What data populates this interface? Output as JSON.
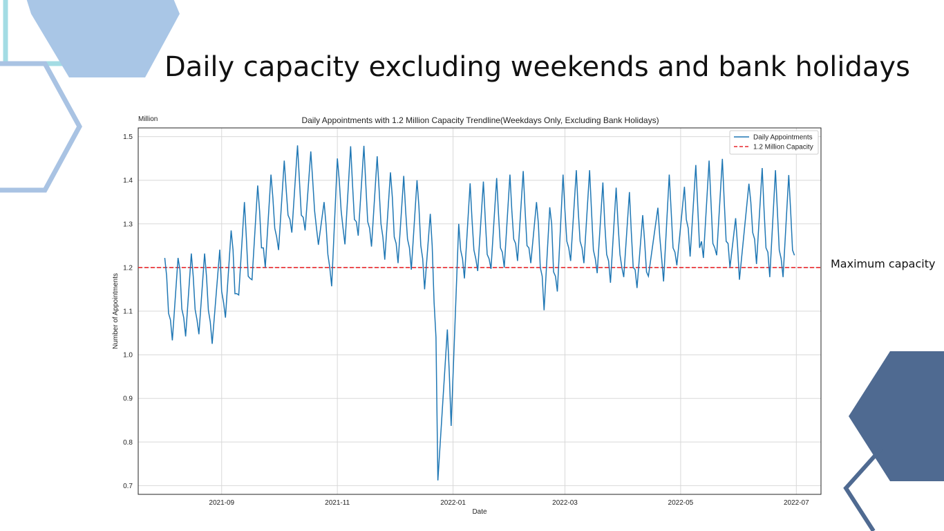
{
  "slide": {
    "title": "Daily capacity excluding weekends and bank holidays",
    "annotation": "Maximum capacity",
    "colors": {
      "hex_light_blue": "#a9c6e6",
      "hex_teal_outline": "#a3dce4",
      "hex_blue_outline": "#a9c3e3",
      "hex_dark_blue": "#4f6a91"
    }
  },
  "chart_data": {
    "type": "line",
    "title": "Daily Appointments with 1.2 Million Capacity Trendline(Weekdays Only, Excluding Bank Holidays)",
    "xlabel": "Date",
    "ylabel": "Number of Appointments",
    "unit_label": "Million",
    "xlim": [
      "2021-07-19",
      "2022-07-14"
    ],
    "ylim": [
      0.68,
      1.52
    ],
    "xticks": [
      "2021-09",
      "2021-11",
      "2022-01",
      "2022-03",
      "2022-05",
      "2022-07"
    ],
    "yticks": [
      "0.7",
      "0.8",
      "0.9",
      "1.0",
      "1.1",
      "1.2",
      "1.3",
      "1.4",
      "1.5"
    ],
    "grid": true,
    "legend_position": "top-right",
    "series": [
      {
        "name": "Daily Appointments",
        "color": "#1f77b4",
        "style": "solid",
        "points": [
          [
            "2021-08-02",
            1.222
          ],
          [
            "2021-08-03",
            1.18
          ],
          [
            "2021-08-04",
            1.095
          ],
          [
            "2021-08-05",
            1.08
          ],
          [
            "2021-08-06",
            1.033
          ],
          [
            "2021-08-09",
            1.222
          ],
          [
            "2021-08-10",
            1.195
          ],
          [
            "2021-08-11",
            1.105
          ],
          [
            "2021-08-12",
            1.085
          ],
          [
            "2021-08-13",
            1.042
          ],
          [
            "2021-08-16",
            1.232
          ],
          [
            "2021-08-17",
            1.18
          ],
          [
            "2021-08-18",
            1.104
          ],
          [
            "2021-08-19",
            1.08
          ],
          [
            "2021-08-20",
            1.047
          ],
          [
            "2021-08-23",
            1.232
          ],
          [
            "2021-08-24",
            1.18
          ],
          [
            "2021-08-25",
            1.102
          ],
          [
            "2021-08-26",
            1.075
          ],
          [
            "2021-08-27",
            1.025
          ],
          [
            "2021-08-31",
            1.241
          ],
          [
            "2021-09-01",
            1.145
          ],
          [
            "2021-09-02",
            1.12
          ],
          [
            "2021-09-03",
            1.085
          ],
          [
            "2021-09-06",
            1.285
          ],
          [
            "2021-09-07",
            1.24
          ],
          [
            "2021-09-08",
            1.14
          ],
          [
            "2021-09-09",
            1.14
          ],
          [
            "2021-09-10",
            1.137
          ],
          [
            "2021-09-13",
            1.35
          ],
          [
            "2021-09-14",
            1.27
          ],
          [
            "2021-09-15",
            1.18
          ],
          [
            "2021-09-16",
            1.175
          ],
          [
            "2021-09-17",
            1.172
          ],
          [
            "2021-09-20",
            1.388
          ],
          [
            "2021-09-21",
            1.33
          ],
          [
            "2021-09-22",
            1.245
          ],
          [
            "2021-09-23",
            1.245
          ],
          [
            "2021-09-24",
            1.2
          ],
          [
            "2021-09-27",
            1.413
          ],
          [
            "2021-09-28",
            1.36
          ],
          [
            "2021-09-29",
            1.29
          ],
          [
            "2021-09-30",
            1.27
          ],
          [
            "2021-10-01",
            1.24
          ],
          [
            "2021-10-04",
            1.445
          ],
          [
            "2021-10-05",
            1.38
          ],
          [
            "2021-10-06",
            1.32
          ],
          [
            "2021-10-07",
            1.31
          ],
          [
            "2021-10-08",
            1.28
          ],
          [
            "2021-10-11",
            1.48
          ],
          [
            "2021-10-12",
            1.4
          ],
          [
            "2021-10-13",
            1.32
          ],
          [
            "2021-10-14",
            1.315
          ],
          [
            "2021-10-15",
            1.285
          ],
          [
            "2021-10-18",
            1.466
          ],
          [
            "2021-10-19",
            1.4
          ],
          [
            "2021-10-20",
            1.33
          ],
          [
            "2021-10-21",
            1.29
          ],
          [
            "2021-10-22",
            1.252
          ],
          [
            "2021-10-25",
            1.35
          ],
          [
            "2021-10-26",
            1.3
          ],
          [
            "2021-10-27",
            1.23
          ],
          [
            "2021-10-28",
            1.2
          ],
          [
            "2021-10-29",
            1.157
          ],
          [
            "2021-11-01",
            1.45
          ],
          [
            "2021-11-02",
            1.4
          ],
          [
            "2021-11-03",
            1.33
          ],
          [
            "2021-11-04",
            1.29
          ],
          [
            "2021-11-05",
            1.253
          ],
          [
            "2021-11-08",
            1.478
          ],
          [
            "2021-11-09",
            1.39
          ],
          [
            "2021-11-10",
            1.31
          ],
          [
            "2021-11-11",
            1.305
          ],
          [
            "2021-11-12",
            1.273
          ],
          [
            "2021-11-15",
            1.479
          ],
          [
            "2021-11-16",
            1.39
          ],
          [
            "2021-11-17",
            1.305
          ],
          [
            "2021-11-18",
            1.29
          ],
          [
            "2021-11-19",
            1.248
          ],
          [
            "2021-11-22",
            1.455
          ],
          [
            "2021-11-23",
            1.38
          ],
          [
            "2021-11-24",
            1.3
          ],
          [
            "2021-11-25",
            1.27
          ],
          [
            "2021-11-26",
            1.218
          ],
          [
            "2021-11-29",
            1.418
          ],
          [
            "2021-11-30",
            1.36
          ],
          [
            "2021-12-01",
            1.27
          ],
          [
            "2021-12-02",
            1.255
          ],
          [
            "2021-12-03",
            1.21
          ],
          [
            "2021-12-06",
            1.41
          ],
          [
            "2021-12-07",
            1.33
          ],
          [
            "2021-12-08",
            1.265
          ],
          [
            "2021-12-09",
            1.245
          ],
          [
            "2021-12-10",
            1.195
          ],
          [
            "2021-12-13",
            1.4
          ],
          [
            "2021-12-14",
            1.34
          ],
          [
            "2021-12-15",
            1.25
          ],
          [
            "2021-12-16",
            1.22
          ],
          [
            "2021-12-17",
            1.15
          ],
          [
            "2021-12-20",
            1.323
          ],
          [
            "2021-12-21",
            1.25
          ],
          [
            "2021-12-22",
            1.12
          ],
          [
            "2021-12-23",
            1.04
          ],
          [
            "2021-12-24",
            0.712
          ],
          [
            "2021-12-29",
            1.058
          ],
          [
            "2021-12-30",
            0.96
          ],
          [
            "2021-12-31",
            0.837
          ],
          [
            "2022-01-04",
            1.3
          ],
          [
            "2022-01-05",
            1.24
          ],
          [
            "2022-01-06",
            1.22
          ],
          [
            "2022-01-07",
            1.175
          ],
          [
            "2022-01-10",
            1.393
          ],
          [
            "2022-01-11",
            1.31
          ],
          [
            "2022-01-12",
            1.24
          ],
          [
            "2022-01-13",
            1.22
          ],
          [
            "2022-01-14",
            1.192
          ],
          [
            "2022-01-17",
            1.397
          ],
          [
            "2022-01-18",
            1.31
          ],
          [
            "2022-01-19",
            1.23
          ],
          [
            "2022-01-20",
            1.22
          ],
          [
            "2022-01-21",
            1.197
          ],
          [
            "2022-01-24",
            1.405
          ],
          [
            "2022-01-25",
            1.32
          ],
          [
            "2022-01-26",
            1.245
          ],
          [
            "2022-01-27",
            1.235
          ],
          [
            "2022-01-28",
            1.2
          ],
          [
            "2022-01-31",
            1.413
          ],
          [
            "2022-02-01",
            1.33
          ],
          [
            "2022-02-02",
            1.265
          ],
          [
            "2022-02-03",
            1.255
          ],
          [
            "2022-02-04",
            1.215
          ],
          [
            "2022-02-07",
            1.421
          ],
          [
            "2022-02-08",
            1.33
          ],
          [
            "2022-02-09",
            1.25
          ],
          [
            "2022-02-10",
            1.245
          ],
          [
            "2022-02-11",
            1.21
          ],
          [
            "2022-02-14",
            1.35
          ],
          [
            "2022-02-15",
            1.3
          ],
          [
            "2022-02-16",
            1.2
          ],
          [
            "2022-02-17",
            1.18
          ],
          [
            "2022-02-18",
            1.102
          ],
          [
            "2022-02-21",
            1.338
          ],
          [
            "2022-02-22",
            1.3
          ],
          [
            "2022-02-23",
            1.19
          ],
          [
            "2022-02-24",
            1.18
          ],
          [
            "2022-02-25",
            1.145
          ],
          [
            "2022-02-28",
            1.413
          ],
          [
            "2022-03-01",
            1.33
          ],
          [
            "2022-03-02",
            1.26
          ],
          [
            "2022-03-03",
            1.245
          ],
          [
            "2022-03-04",
            1.215
          ],
          [
            "2022-03-07",
            1.423
          ],
          [
            "2022-03-08",
            1.33
          ],
          [
            "2022-03-09",
            1.26
          ],
          [
            "2022-03-10",
            1.245
          ],
          [
            "2022-03-11",
            1.21
          ],
          [
            "2022-03-14",
            1.423
          ],
          [
            "2022-03-15",
            1.33
          ],
          [
            "2022-03-16",
            1.24
          ],
          [
            "2022-03-17",
            1.22
          ],
          [
            "2022-03-18",
            1.187
          ],
          [
            "2022-03-21",
            1.395
          ],
          [
            "2022-03-22",
            1.3
          ],
          [
            "2022-03-23",
            1.23
          ],
          [
            "2022-03-24",
            1.215
          ],
          [
            "2022-03-25",
            1.165
          ],
          [
            "2022-03-28",
            1.383
          ],
          [
            "2022-03-29",
            1.3
          ],
          [
            "2022-03-30",
            1.23
          ],
          [
            "2022-03-31",
            1.2
          ],
          [
            "2022-04-01",
            1.178
          ],
          [
            "2022-04-04",
            1.373
          ],
          [
            "2022-04-05",
            1.28
          ],
          [
            "2022-04-06",
            1.2
          ],
          [
            "2022-04-07",
            1.195
          ],
          [
            "2022-04-08",
            1.153
          ],
          [
            "2022-04-11",
            1.32
          ],
          [
            "2022-04-12",
            1.26
          ],
          [
            "2022-04-13",
            1.19
          ],
          [
            "2022-04-14",
            1.18
          ],
          [
            "2022-04-19",
            1.337
          ],
          [
            "2022-04-20",
            1.27
          ],
          [
            "2022-04-21",
            1.22
          ],
          [
            "2022-04-22",
            1.168
          ],
          [
            "2022-04-25",
            1.413
          ],
          [
            "2022-04-26",
            1.33
          ],
          [
            "2022-04-27",
            1.245
          ],
          [
            "2022-04-28",
            1.235
          ],
          [
            "2022-04-29",
            1.205
          ],
          [
            "2022-05-03",
            1.385
          ],
          [
            "2022-05-04",
            1.31
          ],
          [
            "2022-05-05",
            1.29
          ],
          [
            "2022-05-06",
            1.225
          ],
          [
            "2022-05-09",
            1.435
          ],
          [
            "2022-05-10",
            1.34
          ],
          [
            "2022-05-11",
            1.245
          ],
          [
            "2022-05-12",
            1.26
          ],
          [
            "2022-05-13",
            1.222
          ],
          [
            "2022-05-16",
            1.445
          ],
          [
            "2022-05-17",
            1.35
          ],
          [
            "2022-05-18",
            1.255
          ],
          [
            "2022-05-19",
            1.245
          ],
          [
            "2022-05-20",
            1.228
          ],
          [
            "2022-05-23",
            1.449
          ],
          [
            "2022-05-24",
            1.35
          ],
          [
            "2022-05-25",
            1.26
          ],
          [
            "2022-05-26",
            1.255
          ],
          [
            "2022-05-27",
            1.2
          ],
          [
            "2022-05-30",
            1.313
          ],
          [
            "2022-05-31",
            1.25
          ],
          [
            "2022-06-01",
            1.172
          ],
          [
            "2022-06-06",
            1.392
          ],
          [
            "2022-06-07",
            1.35
          ],
          [
            "2022-06-08",
            1.28
          ],
          [
            "2022-06-09",
            1.265
          ],
          [
            "2022-06-10",
            1.208
          ],
          [
            "2022-06-13",
            1.428
          ],
          [
            "2022-06-14",
            1.33
          ],
          [
            "2022-06-15",
            1.245
          ],
          [
            "2022-06-16",
            1.235
          ],
          [
            "2022-06-17",
            1.178
          ],
          [
            "2022-06-20",
            1.423
          ],
          [
            "2022-06-21",
            1.33
          ],
          [
            "2022-06-22",
            1.24
          ],
          [
            "2022-06-23",
            1.22
          ],
          [
            "2022-06-24",
            1.178
          ],
          [
            "2022-06-27",
            1.412
          ],
          [
            "2022-06-28",
            1.33
          ],
          [
            "2022-06-29",
            1.24
          ],
          [
            "2022-06-30",
            1.228
          ]
        ]
      },
      {
        "name": "1.2 Million Capacity",
        "color": "#e8262b",
        "style": "dashed",
        "value": 1.2
      }
    ]
  }
}
